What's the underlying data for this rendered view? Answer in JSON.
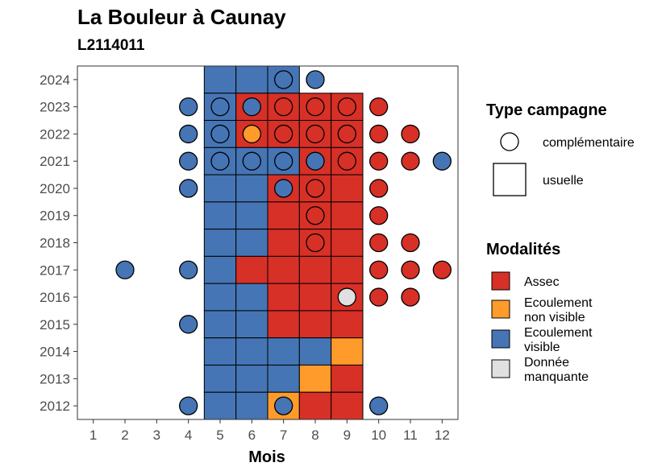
{
  "chart_data": {
    "type": "heatmap",
    "title": "La Bouleur à Caunay",
    "subtitle": "L2114011",
    "xlabel": "Mois",
    "ylabel": "",
    "x_ticks": [
      1,
      2,
      3,
      4,
      5,
      6,
      7,
      8,
      9,
      10,
      11,
      12
    ],
    "y_ticks": [
      2012,
      2013,
      2014,
      2015,
      2016,
      2017,
      2018,
      2019,
      2020,
      2021,
      2022,
      2023,
      2024
    ],
    "xlim": [
      0.5,
      12.5
    ],
    "ylim": [
      2011.5,
      2024.5
    ],
    "colors": {
      "Assec": "#d73027",
      "Ecoulement non visible": "#fe9b2b",
      "Ecoulement visible": "#4575b4",
      "Donnée manquante": "#e0e0e0"
    },
    "usuelle": [
      {
        "year": 2024,
        "month": 5,
        "m": "Ecoulement visible"
      },
      {
        "year": 2024,
        "month": 6,
        "m": "Ecoulement visible"
      },
      {
        "year": 2024,
        "month": 7,
        "m": "Ecoulement visible"
      },
      {
        "year": 2023,
        "month": 5,
        "m": "Ecoulement visible"
      },
      {
        "year": 2023,
        "month": 6,
        "m": "Assec"
      },
      {
        "year": 2023,
        "month": 7,
        "m": "Assec"
      },
      {
        "year": 2023,
        "month": 8,
        "m": "Assec"
      },
      {
        "year": 2023,
        "month": 9,
        "m": "Assec"
      },
      {
        "year": 2022,
        "month": 5,
        "m": "Ecoulement visible"
      },
      {
        "year": 2022,
        "month": 6,
        "m": "Assec"
      },
      {
        "year": 2022,
        "month": 7,
        "m": "Assec"
      },
      {
        "year": 2022,
        "month": 8,
        "m": "Assec"
      },
      {
        "year": 2022,
        "month": 9,
        "m": "Assec"
      },
      {
        "year": 2021,
        "month": 5,
        "m": "Ecoulement visible"
      },
      {
        "year": 2021,
        "month": 6,
        "m": "Ecoulement visible"
      },
      {
        "year": 2021,
        "month": 7,
        "m": "Ecoulement visible"
      },
      {
        "year": 2021,
        "month": 8,
        "m": "Assec"
      },
      {
        "year": 2021,
        "month": 9,
        "m": "Assec"
      },
      {
        "year": 2020,
        "month": 5,
        "m": "Ecoulement visible"
      },
      {
        "year": 2020,
        "month": 6,
        "m": "Ecoulement visible"
      },
      {
        "year": 2020,
        "month": 7,
        "m": "Assec"
      },
      {
        "year": 2020,
        "month": 8,
        "m": "Assec"
      },
      {
        "year": 2020,
        "month": 9,
        "m": "Assec"
      },
      {
        "year": 2019,
        "month": 5,
        "m": "Ecoulement visible"
      },
      {
        "year": 2019,
        "month": 6,
        "m": "Ecoulement visible"
      },
      {
        "year": 2019,
        "month": 7,
        "m": "Assec"
      },
      {
        "year": 2019,
        "month": 8,
        "m": "Assec"
      },
      {
        "year": 2019,
        "month": 9,
        "m": "Assec"
      },
      {
        "year": 2018,
        "month": 5,
        "m": "Ecoulement visible"
      },
      {
        "year": 2018,
        "month": 6,
        "m": "Ecoulement visible"
      },
      {
        "year": 2018,
        "month": 7,
        "m": "Assec"
      },
      {
        "year": 2018,
        "month": 8,
        "m": "Assec"
      },
      {
        "year": 2018,
        "month": 9,
        "m": "Assec"
      },
      {
        "year": 2017,
        "month": 5,
        "m": "Ecoulement visible"
      },
      {
        "year": 2017,
        "month": 6,
        "m": "Assec"
      },
      {
        "year": 2017,
        "month": 7,
        "m": "Assec"
      },
      {
        "year": 2017,
        "month": 8,
        "m": "Assec"
      },
      {
        "year": 2017,
        "month": 9,
        "m": "Assec"
      },
      {
        "year": 2016,
        "month": 5,
        "m": "Ecoulement visible"
      },
      {
        "year": 2016,
        "month": 6,
        "m": "Ecoulement visible"
      },
      {
        "year": 2016,
        "month": 7,
        "m": "Assec"
      },
      {
        "year": 2016,
        "month": 8,
        "m": "Assec"
      },
      {
        "year": 2016,
        "month": 9,
        "m": "Assec"
      },
      {
        "year": 2015,
        "month": 5,
        "m": "Ecoulement visible"
      },
      {
        "year": 2015,
        "month": 6,
        "m": "Ecoulement visible"
      },
      {
        "year": 2015,
        "month": 7,
        "m": "Assec"
      },
      {
        "year": 2015,
        "month": 8,
        "m": "Assec"
      },
      {
        "year": 2015,
        "month": 9,
        "m": "Assec"
      },
      {
        "year": 2014,
        "month": 5,
        "m": "Ecoulement visible"
      },
      {
        "year": 2014,
        "month": 6,
        "m": "Ecoulement visible"
      },
      {
        "year": 2014,
        "month": 7,
        "m": "Ecoulement visible"
      },
      {
        "year": 2014,
        "month": 8,
        "m": "Ecoulement visible"
      },
      {
        "year": 2014,
        "month": 9,
        "m": "Ecoulement non visible"
      },
      {
        "year": 2013,
        "month": 5,
        "m": "Ecoulement visible"
      },
      {
        "year": 2013,
        "month": 6,
        "m": "Ecoulement visible"
      },
      {
        "year": 2013,
        "month": 7,
        "m": "Ecoulement visible"
      },
      {
        "year": 2013,
        "month": 8,
        "m": "Ecoulement non visible"
      },
      {
        "year": 2013,
        "month": 9,
        "m": "Assec"
      },
      {
        "year": 2012,
        "month": 5,
        "m": "Ecoulement visible"
      },
      {
        "year": 2012,
        "month": 6,
        "m": "Ecoulement visible"
      },
      {
        "year": 2012,
        "month": 7,
        "m": "Ecoulement non visible"
      },
      {
        "year": 2012,
        "month": 8,
        "m": "Assec"
      },
      {
        "year": 2012,
        "month": 9,
        "m": "Assec"
      }
    ],
    "complementaire": [
      {
        "year": 2024,
        "month": 7,
        "m": "Ecoulement visible"
      },
      {
        "year": 2024,
        "month": 8,
        "m": "Ecoulement visible"
      },
      {
        "year": 2023,
        "month": 4,
        "m": "Ecoulement visible"
      },
      {
        "year": 2023,
        "month": 5,
        "m": "Ecoulement visible"
      },
      {
        "year": 2023,
        "month": 6,
        "m": "Ecoulement visible"
      },
      {
        "year": 2023,
        "month": 7,
        "m": "Assec"
      },
      {
        "year": 2023,
        "month": 8,
        "m": "Assec"
      },
      {
        "year": 2023,
        "month": 9,
        "m": "Assec"
      },
      {
        "year": 2023,
        "month": 10,
        "m": "Assec"
      },
      {
        "year": 2022,
        "month": 4,
        "m": "Ecoulement visible"
      },
      {
        "year": 2022,
        "month": 5,
        "m": "Ecoulement visible"
      },
      {
        "year": 2022,
        "month": 6,
        "m": "Ecoulement non visible"
      },
      {
        "year": 2022,
        "month": 7,
        "m": "Assec"
      },
      {
        "year": 2022,
        "month": 8,
        "m": "Assec"
      },
      {
        "year": 2022,
        "month": 9,
        "m": "Assec"
      },
      {
        "year": 2022,
        "month": 10,
        "m": "Assec"
      },
      {
        "year": 2022,
        "month": 11,
        "m": "Assec"
      },
      {
        "year": 2021,
        "month": 4,
        "m": "Ecoulement visible"
      },
      {
        "year": 2021,
        "month": 5,
        "m": "Ecoulement visible"
      },
      {
        "year": 2021,
        "month": 6,
        "m": "Ecoulement visible"
      },
      {
        "year": 2021,
        "month": 7,
        "m": "Ecoulement visible"
      },
      {
        "year": 2021,
        "month": 8,
        "m": "Ecoulement visible"
      },
      {
        "year": 2021,
        "month": 9,
        "m": "Assec"
      },
      {
        "year": 2021,
        "month": 10,
        "m": "Assec"
      },
      {
        "year": 2021,
        "month": 11,
        "m": "Assec"
      },
      {
        "year": 2021,
        "month": 12,
        "m": "Ecoulement visible"
      },
      {
        "year": 2020,
        "month": 4,
        "m": "Ecoulement visible"
      },
      {
        "year": 2020,
        "month": 7,
        "m": "Ecoulement visible"
      },
      {
        "year": 2020,
        "month": 8,
        "m": "Assec"
      },
      {
        "year": 2020,
        "month": 10,
        "m": "Assec"
      },
      {
        "year": 2019,
        "month": 8,
        "m": "Assec"
      },
      {
        "year": 2019,
        "month": 10,
        "m": "Assec"
      },
      {
        "year": 2018,
        "month": 8,
        "m": "Assec"
      },
      {
        "year": 2018,
        "month": 10,
        "m": "Assec"
      },
      {
        "year": 2018,
        "month": 11,
        "m": "Assec"
      },
      {
        "year": 2017,
        "month": 2,
        "m": "Ecoulement visible"
      },
      {
        "year": 2017,
        "month": 4,
        "m": "Ecoulement visible"
      },
      {
        "year": 2017,
        "month": 10,
        "m": "Assec"
      },
      {
        "year": 2017,
        "month": 11,
        "m": "Assec"
      },
      {
        "year": 2017,
        "month": 12,
        "m": "Assec"
      },
      {
        "year": 2016,
        "month": 9,
        "m": "Donnée manquante"
      },
      {
        "year": 2016,
        "month": 10,
        "m": "Assec"
      },
      {
        "year": 2016,
        "month": 11,
        "m": "Assec"
      },
      {
        "year": 2015,
        "month": 4,
        "m": "Ecoulement visible"
      },
      {
        "year": 2012,
        "month": 4,
        "m": "Ecoulement visible"
      },
      {
        "year": 2012,
        "month": 7,
        "m": "Ecoulement visible"
      },
      {
        "year": 2012,
        "month": 10,
        "m": "Ecoulement visible"
      }
    ],
    "legend": {
      "type_title": "Type campagne",
      "type_items": [
        {
          "label": "complémentaire",
          "shape": "circle"
        },
        {
          "label": "usuelle",
          "shape": "square"
        }
      ],
      "mod_title": "Modalités",
      "mod_items": [
        {
          "lines": [
            "Assec"
          ],
          "key": "Assec"
        },
        {
          "lines": [
            "Ecoulement",
            "non visible"
          ],
          "key": "Ecoulement non visible"
        },
        {
          "lines": [
            "Ecoulement",
            "visible"
          ],
          "key": "Ecoulement visible"
        },
        {
          "lines": [
            "Donnée",
            "manquante"
          ],
          "key": "Donnée manquante"
        }
      ],
      "position": "right"
    }
  }
}
